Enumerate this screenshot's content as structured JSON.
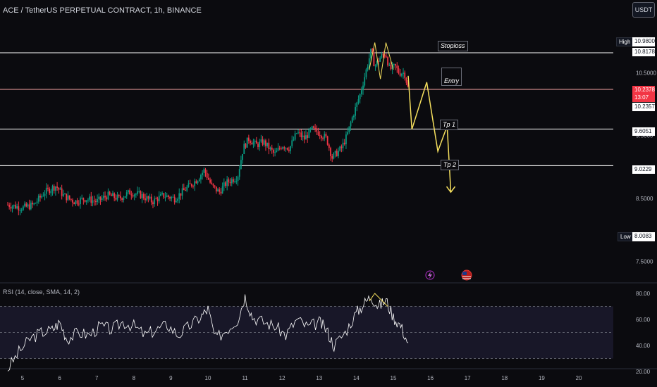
{
  "header": {
    "symbol_title": "ACE / TetherUS PERPETUAL CONTRACT, 1h, BINANCE",
    "currency_button": "USDT"
  },
  "rsi_panel": {
    "title": "RSI (14, close, SMA, 14, 2)"
  },
  "price_tags": {
    "high_label": "High",
    "high_value": "10.9800",
    "low_label": "Low",
    "low_value": "8.0083",
    "stoploss_level": "10.8178",
    "last_price": "10.2378",
    "countdown": "13:07",
    "entry_level": "10.2357",
    "tp1_level": "9.6051",
    "tp2_level": "9.0229"
  },
  "annotations": {
    "stoploss": "Stoploss",
    "entry": "Entry",
    "tp1": "Tp 1",
    "tp2": "Tp 2"
  },
  "colors": {
    "background": "#0b0b0f",
    "up_candle": "#089981",
    "down_candle": "#f23645",
    "level_line": "#ffffff",
    "entry_line": "#f7a3a3",
    "projection": "#f6e05e",
    "rsi_line": "#ffffff",
    "rsi_band": "#1c1a2e"
  },
  "icons": [
    "lightning-icon",
    "us-flag-icon"
  ],
  "chart_data": [
    {
      "type": "candlestick",
      "title": "ACE / TetherUS PERPETUAL CONTRACT, 1h, BINANCE",
      "x_ticks": [
        "5",
        "6",
        "7",
        "8",
        "9",
        "10",
        "11",
        "12",
        "13",
        "14",
        "15",
        "16",
        "17",
        "18",
        "19",
        "20"
      ],
      "y_ticks": [
        "10.5000",
        "9.5000",
        "8.5000",
        "7.5000"
      ],
      "ylim": [
        7.4,
        11.25
      ],
      "horizontal_levels": [
        {
          "name": "Stoploss",
          "value": 10.8178
        },
        {
          "name": "Entry",
          "value": 10.2357
        },
        {
          "name": "Tp 1",
          "value": 9.6051
        },
        {
          "name": "Tp 2",
          "value": 9.0229
        }
      ],
      "price_path": [
        [
          4.6,
          8.4
        ],
        [
          5.0,
          8.35
        ],
        [
          5.3,
          8.4
        ],
        [
          5.6,
          8.6
        ],
        [
          5.9,
          8.7
        ],
        [
          6.1,
          8.55
        ],
        [
          6.4,
          8.45
        ],
        [
          6.7,
          8.5
        ],
        [
          7.0,
          8.45
        ],
        [
          7.3,
          8.55
        ],
        [
          7.6,
          8.5
        ],
        [
          7.9,
          8.6
        ],
        [
          8.2,
          8.55
        ],
        [
          8.5,
          8.45
        ],
        [
          8.8,
          8.55
        ],
        [
          9.1,
          8.5
        ],
        [
          9.4,
          8.65
        ],
        [
          9.7,
          8.8
        ],
        [
          9.9,
          8.95
        ],
        [
          10.1,
          8.7
        ],
        [
          10.3,
          8.6
        ],
        [
          10.5,
          8.75
        ],
        [
          10.8,
          8.85
        ],
        [
          10.95,
          9.3
        ],
        [
          11.1,
          9.45
        ],
        [
          11.3,
          9.35
        ],
        [
          11.5,
          9.4
        ],
        [
          11.8,
          9.2
        ],
        [
          12.0,
          9.35
        ],
        [
          12.2,
          9.3
        ],
        [
          12.4,
          9.55
        ],
        [
          12.6,
          9.45
        ],
        [
          12.8,
          9.6
        ],
        [
          13.0,
          9.55
        ],
        [
          13.2,
          9.45
        ],
        [
          13.35,
          9.15
        ],
        [
          13.6,
          9.3
        ],
        [
          13.75,
          9.5
        ],
        [
          13.9,
          9.8
        ],
        [
          14.1,
          10.15
        ],
        [
          14.25,
          10.5
        ],
        [
          14.4,
          10.85
        ],
        [
          14.5,
          10.6
        ],
        [
          14.65,
          10.75
        ],
        [
          14.8,
          10.8
        ],
        [
          14.9,
          10.55
        ],
        [
          15.05,
          10.6
        ],
        [
          15.15,
          10.5
        ],
        [
          15.3,
          10.5
        ],
        [
          15.4,
          10.24
        ]
      ],
      "projection_path": [
        [
          15.4,
          10.45
        ],
        [
          15.5,
          9.6
        ],
        [
          15.9,
          10.35
        ],
        [
          16.2,
          9.25
        ],
        [
          16.45,
          9.65
        ],
        [
          16.55,
          8.6
        ]
      ],
      "highlight_path": [
        [
          14.35,
          10.55
        ],
        [
          14.5,
          10.98
        ],
        [
          14.65,
          10.4
        ],
        [
          14.8,
          10.98
        ],
        [
          15.0,
          10.55
        ]
      ]
    },
    {
      "type": "line",
      "title": "RSI (14, close, SMA, 14, 2)",
      "y_ticks": [
        "80.00",
        "60.00",
        "40.00",
        "20.00"
      ],
      "ylim": [
        18,
        88
      ],
      "bands": [
        70,
        50,
        30
      ],
      "rsi_path": [
        [
          4.6,
          22
        ],
        [
          4.9,
          35
        ],
        [
          5.2,
          45
        ],
        [
          5.5,
          50
        ],
        [
          5.8,
          52
        ],
        [
          6.0,
          58
        ],
        [
          6.2,
          45
        ],
        [
          6.5,
          50
        ],
        [
          6.8,
          48
        ],
        [
          7.1,
          55
        ],
        [
          7.4,
          52
        ],
        [
          7.7,
          58
        ],
        [
          8.0,
          55
        ],
        [
          8.3,
          48
        ],
        [
          8.6,
          52
        ],
        [
          8.9,
          56
        ],
        [
          9.2,
          48
        ],
        [
          9.5,
          55
        ],
        [
          9.8,
          62
        ],
        [
          10.0,
          68
        ],
        [
          10.2,
          45
        ],
        [
          10.5,
          52
        ],
        [
          10.8,
          60
        ],
        [
          11.0,
          78
        ],
        [
          11.2,
          62
        ],
        [
          11.5,
          58
        ],
        [
          11.8,
          55
        ],
        [
          12.1,
          48
        ],
        [
          12.4,
          60
        ],
        [
          12.7,
          54
        ],
        [
          13.0,
          58
        ],
        [
          13.2,
          52
        ],
        [
          13.4,
          40
        ],
        [
          13.7,
          50
        ],
        [
          14.0,
          65
        ],
        [
          14.2,
          72
        ],
        [
          14.4,
          78
        ],
        [
          14.6,
          70
        ],
        [
          14.8,
          75
        ],
        [
          15.0,
          62
        ],
        [
          15.2,
          55
        ],
        [
          15.4,
          42
        ]
      ],
      "highlight_path": [
        [
          14.35,
          74
        ],
        [
          14.5,
          80
        ],
        [
          14.85,
          70
        ]
      ]
    }
  ]
}
